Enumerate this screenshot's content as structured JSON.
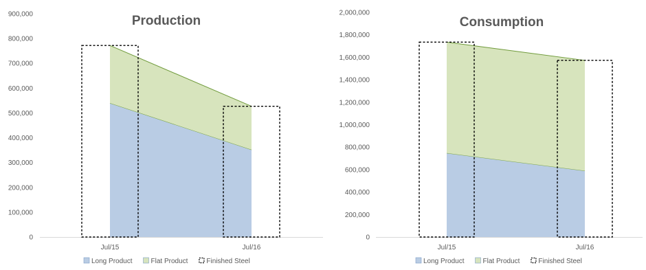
{
  "chart_data": [
    {
      "type": "area",
      "title": "Production",
      "categories": [
        "Jul/15",
        "Jul/16"
      ],
      "ylim": [
        0,
        900000
      ],
      "yticks": [
        0,
        100000,
        200000,
        300000,
        400000,
        500000,
        600000,
        700000,
        800000,
        900000
      ],
      "ytick_labels": [
        "0",
        "100,000",
        "200,000",
        "300,000",
        "400,000",
        "500,000",
        "600,000",
        "700,000",
        "800,000",
        "900,000"
      ],
      "grid": false,
      "legend_position": "bottom",
      "series": [
        {
          "name": "Long Product",
          "values": [
            540000,
            352000
          ],
          "style": "stacked-area",
          "color": "#b9cce4",
          "stroke": "#7aa346"
        },
        {
          "name": "Flat Product",
          "values": [
            232000,
            175000
          ],
          "style": "stacked-area",
          "color": "#d7e4bd",
          "stroke": "#6f9a3a"
        },
        {
          "name": "Finished Steel",
          "values": [
            772000,
            527000
          ],
          "style": "dashed-bar",
          "color": "#000000"
        }
      ]
    },
    {
      "type": "area",
      "title": "Consumption",
      "categories": [
        "Jul/15",
        "Jul/16"
      ],
      "ylim": [
        0,
        2000000
      ],
      "yticks": [
        0,
        200000,
        400000,
        600000,
        800000,
        1000000,
        1200000,
        1400000,
        1600000,
        1800000,
        2000000
      ],
      "ytick_labels": [
        "0",
        "200,000",
        "400,000",
        "600,000",
        "800,000",
        "1,000,000",
        "1,200,000",
        "1,400,000",
        "1,600,000",
        "1,800,000",
        "2,000,000"
      ],
      "grid": false,
      "legend_position": "bottom",
      "series": [
        {
          "name": "Long Product",
          "values": [
            748000,
            590000
          ],
          "style": "stacked-area",
          "color": "#b9cce4",
          "stroke": "#7aa346"
        },
        {
          "name": "Flat Product",
          "values": [
            987000,
            983000
          ],
          "style": "stacked-area",
          "color": "#d7e4bd",
          "stroke": "#6f9a3a"
        },
        {
          "name": "Finished Steel",
          "values": [
            1735000,
            1573000
          ],
          "style": "dashed-bar",
          "color": "#000000"
        }
      ]
    }
  ]
}
